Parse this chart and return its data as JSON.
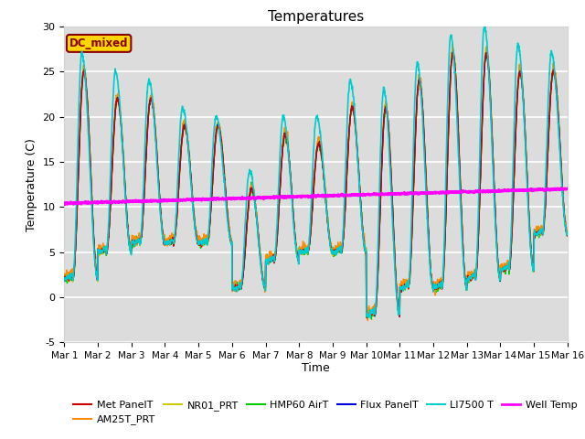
{
  "title": "Temperatures",
  "xlabel": "Time",
  "ylabel": "Temperature (C)",
  "ylim": [
    -5,
    30
  ],
  "annotation_text": "DC_mixed",
  "annotation_color": "#8B0000",
  "annotation_bg": "#FFD700",
  "background_color": "#DCDCDC",
  "grid_color": "white",
  "series": {
    "Met PanelT": {
      "color": "#CC0000",
      "lw": 1.0,
      "zorder": 3
    },
    "AM25T_PRT": {
      "color": "#FF8C00",
      "lw": 1.0,
      "zorder": 3
    },
    "NR01_PRT": {
      "color": "#CCCC00",
      "lw": 1.0,
      "zorder": 3
    },
    "HMP60 AirT": {
      "color": "#00CC00",
      "lw": 1.0,
      "zorder": 3
    },
    "Flux PanelT": {
      "color": "#0000DD",
      "lw": 1.0,
      "zorder": 3
    },
    "LI7500 T": {
      "color": "#00CCCC",
      "lw": 1.2,
      "zorder": 4
    },
    "Well Temp": {
      "color": "#FF00FF",
      "lw": 2.0,
      "zorder": 5
    }
  },
  "xtick_labels": [
    "Mar 1",
    "Mar 2",
    "Mar 3",
    "Mar 4",
    "Mar 5",
    "Mar 6",
    "Mar 7",
    "Mar 8",
    "Mar 9",
    "Mar 10",
    "Mar 11",
    "Mar 12",
    "Mar 13",
    "Mar 14",
    "Mar 15",
    "Mar 16"
  ],
  "xtick_positions": [
    0,
    1,
    2,
    3,
    4,
    5,
    6,
    7,
    8,
    9,
    10,
    11,
    12,
    13,
    14,
    15
  ],
  "ytick_positions": [
    -5,
    0,
    5,
    10,
    15,
    20,
    25,
    30
  ],
  "day_mins": [
    2,
    5,
    6,
    6,
    6,
    1,
    4,
    5,
    5,
    -2,
    1,
    1,
    2,
    3,
    7
  ],
  "day_maxs": [
    25,
    22,
    22,
    19,
    19,
    12,
    18,
    17,
    21,
    21,
    24,
    27,
    27,
    25,
    25
  ],
  "li7500_day_maxs": [
    27,
    25,
    24,
    21,
    20,
    14,
    20,
    20,
    24,
    23,
    26,
    29,
    30,
    28,
    27
  ],
  "well_temp_start": 10.4,
  "well_temp_end": 12.0
}
